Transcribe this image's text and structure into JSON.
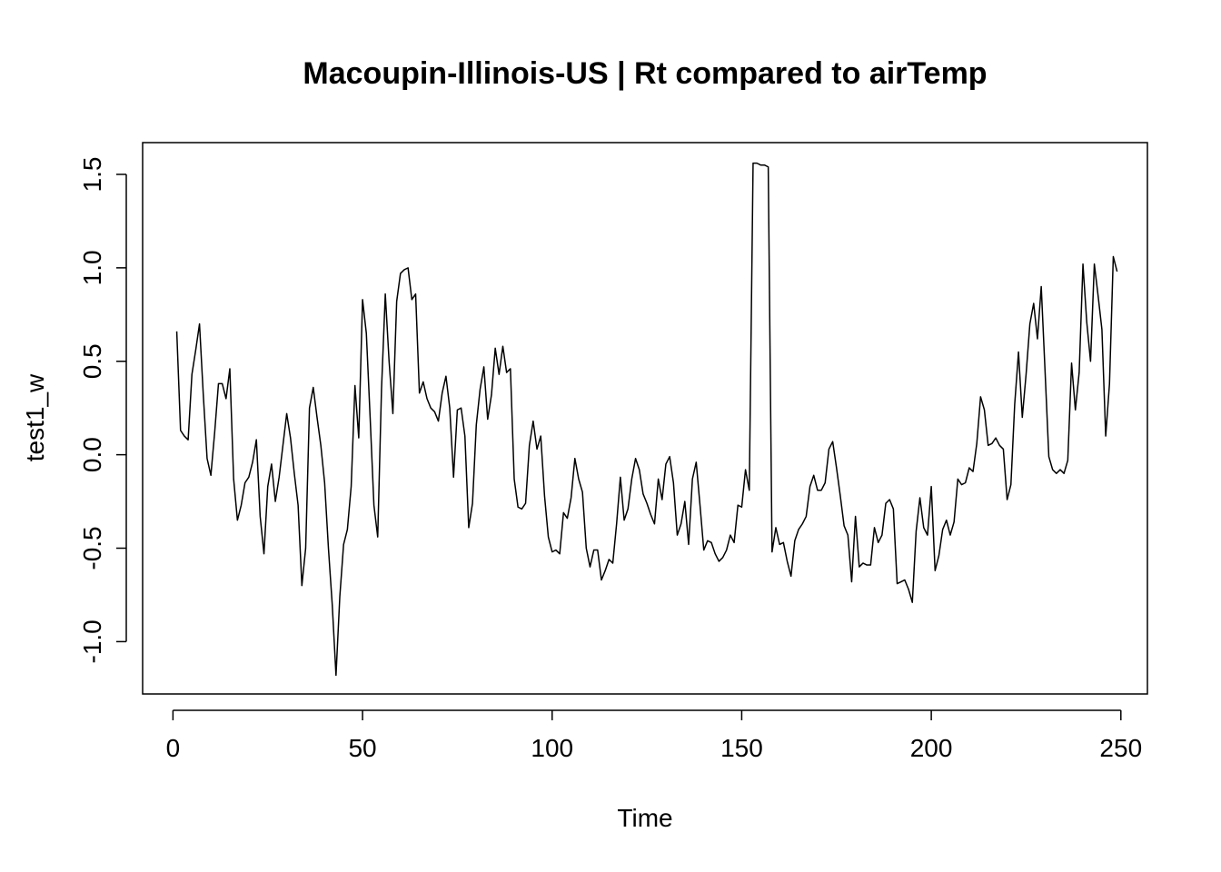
{
  "chart_data": {
    "type": "line",
    "title": "Macoupin-Illinois-US | Rt compared to airTemp",
    "xlabel": "Time",
    "ylabel": "test1_w",
    "xlim": [
      -8,
      257
    ],
    "ylim": [
      -1.28,
      1.67
    ],
    "x_ticks": [
      0,
      50,
      100,
      150,
      200,
      250
    ],
    "x_tick_labels": [
      "0",
      "50",
      "100",
      "150",
      "200",
      "250"
    ],
    "y_ticks": [
      -1.0,
      -0.5,
      0.0,
      0.5,
      1.0,
      1.5
    ],
    "y_tick_labels": [
      "-1.0",
      "-0.5",
      "0.0",
      "0.5",
      "1.0",
      "1.5"
    ],
    "grid": false,
    "legend": "none",
    "line_color": "#000000",
    "series": [
      {
        "x_start": 1,
        "values": [
          0.66,
          0.13,
          0.1,
          0.08,
          0.43,
          0.56,
          0.7,
          0.32,
          -0.02,
          -0.11,
          0.12,
          0.38,
          0.38,
          0.3,
          0.46,
          -0.13,
          -0.35,
          -0.27,
          -0.15,
          -0.12,
          -0.04,
          0.08,
          -0.33,
          -0.53,
          -0.17,
          -0.05,
          -0.25,
          -0.12,
          0.05,
          0.22,
          0.09,
          -0.1,
          -0.27,
          -0.7,
          -0.5,
          0.25,
          0.36,
          0.2,
          0.05,
          -0.15,
          -0.5,
          -0.8,
          -1.18,
          -0.76,
          -0.48,
          -0.4,
          -0.17,
          0.37,
          0.09,
          0.83,
          0.65,
          0.2,
          -0.27,
          -0.44,
          0.35,
          0.86,
          0.5,
          0.22,
          0.82,
          0.97,
          0.99,
          1.0,
          0.83,
          0.86,
          0.33,
          0.39,
          0.3,
          0.25,
          0.23,
          0.18,
          0.33,
          0.42,
          0.25,
          -0.12,
          0.24,
          0.25,
          0.1,
          -0.39,
          -0.26,
          0.16,
          0.35,
          0.47,
          0.19,
          0.32,
          0.57,
          0.43,
          0.58,
          0.44,
          0.46,
          -0.13,
          -0.28,
          -0.29,
          -0.26,
          0.05,
          0.18,
          0.03,
          0.1,
          -0.22,
          -0.44,
          -0.52,
          -0.51,
          -0.53,
          -0.31,
          -0.34,
          -0.23,
          -0.02,
          -0.13,
          -0.2,
          -0.5,
          -0.6,
          -0.51,
          -0.51,
          -0.67,
          -0.62,
          -0.56,
          -0.58,
          -0.37,
          -0.12,
          -0.35,
          -0.29,
          -0.13,
          -0.02,
          -0.08,
          -0.21,
          -0.26,
          -0.32,
          -0.37,
          -0.13,
          -0.24,
          -0.05,
          -0.01,
          -0.15,
          -0.43,
          -0.37,
          -0.25,
          -0.48,
          -0.13,
          -0.04,
          -0.27,
          -0.51,
          -0.46,
          -0.47,
          -0.53,
          -0.57,
          -0.55,
          -0.51,
          -0.43,
          -0.47,
          -0.27,
          -0.28,
          -0.08,
          -0.19,
          1.56,
          1.56,
          1.55,
          1.55,
          1.54,
          -0.52,
          -0.39,
          -0.48,
          -0.47,
          -0.57,
          -0.65,
          -0.46,
          -0.4,
          -0.37,
          -0.33,
          -0.17,
          -0.11,
          -0.19,
          -0.19,
          -0.15,
          0.03,
          0.07,
          -0.07,
          -0.22,
          -0.38,
          -0.43,
          -0.68,
          -0.33,
          -0.6,
          -0.58,
          -0.59,
          -0.59,
          -0.39,
          -0.47,
          -0.43,
          -0.26,
          -0.24,
          -0.29,
          -0.69,
          -0.68,
          -0.67,
          -0.72,
          -0.79,
          -0.41,
          -0.23,
          -0.39,
          -0.43,
          -0.17,
          -0.62,
          -0.54,
          -0.4,
          -0.35,
          -0.43,
          -0.36,
          -0.13,
          -0.16,
          -0.15,
          -0.07,
          -0.09,
          0.06,
          0.31,
          0.24,
          0.05,
          0.06,
          0.09,
          0.05,
          0.03,
          -0.24,
          -0.16,
          0.27,
          0.55,
          0.2,
          0.43,
          0.7,
          0.81,
          0.62,
          0.9,
          0.45,
          -0.01,
          -0.08,
          -0.1,
          -0.08,
          -0.1,
          -0.03,
          0.49,
          0.24,
          0.44,
          1.02,
          0.71,
          0.5,
          1.02,
          0.85,
          0.67,
          0.1,
          0.38,
          1.06,
          0.98
        ]
      }
    ]
  }
}
